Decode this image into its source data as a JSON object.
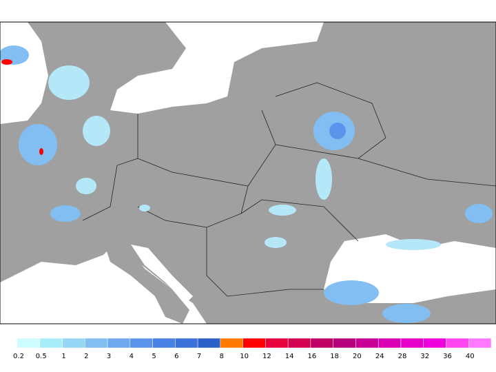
{
  "legend": {
    "items": [
      {
        "label": "0.2",
        "color": "#ccfcff"
      },
      {
        "label": "0.5",
        "color": "#a8eef8"
      },
      {
        "label": "1",
        "color": "#96d6f5"
      },
      {
        "label": "2",
        "color": "#82bef2"
      },
      {
        "label": "3",
        "color": "#6ea8ee"
      },
      {
        "label": "4",
        "color": "#5a94ea"
      },
      {
        "label": "5",
        "color": "#4882e4"
      },
      {
        "label": "6",
        "color": "#3a72da"
      },
      {
        "label": "7",
        "color": "#2a60c8"
      },
      {
        "label": "8",
        "color": "#ff7800"
      },
      {
        "label": "10",
        "color": "#ff0000"
      },
      {
        "label": "12",
        "color": "#e6003c"
      },
      {
        "label": "14",
        "color": "#d2004e"
      },
      {
        "label": "16",
        "color": "#be0064"
      },
      {
        "label": "18",
        "color": "#b4007a"
      },
      {
        "label": "20",
        "color": "#c80096"
      },
      {
        "label": "24",
        "color": "#d800b2"
      },
      {
        "label": "28",
        "color": "#e400c8"
      },
      {
        "label": "32",
        "color": "#f000dc"
      },
      {
        "label": "36",
        "color": "#ff46f0"
      },
      {
        "label": "40",
        "color": "#ff78ff"
      }
    ]
  }
}
